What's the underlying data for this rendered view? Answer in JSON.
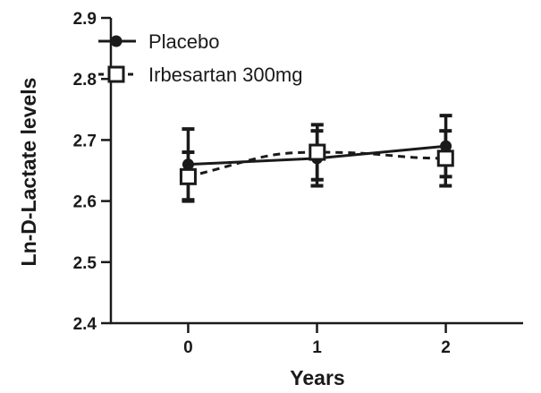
{
  "chart_data": {
    "type": "line",
    "title": "",
    "xlabel": "Years",
    "ylabel": "Ln-D-Lactate levels",
    "x": [
      0,
      1,
      2
    ],
    "x_tick_labels": [
      "0",
      "1",
      "2"
    ],
    "xlim": [
      -0.6,
      2.6
    ],
    "ylim": [
      2.4,
      2.9
    ],
    "y_ticks": [
      2.4,
      2.5,
      2.6,
      2.7,
      2.8,
      2.9
    ],
    "y_tick_labels": [
      "2.4",
      "2.5",
      "2.6",
      "2.7",
      "2.8",
      "2.9"
    ],
    "grid": false,
    "legend_position": "top-left",
    "series": [
      {
        "name": "Placebo",
        "values": [
          2.66,
          2.67,
          2.69
        ],
        "error": [
          0.058,
          0.045,
          0.05
        ],
        "marker": "filled-circle",
        "line_style": "solid",
        "color": "#1a1a1a"
      },
      {
        "name": "Irbesartan 300mg",
        "values": [
          2.64,
          2.68,
          2.67
        ],
        "error": [
          0.04,
          0.045,
          0.045
        ],
        "marker": "open-square",
        "line_style": "dashed",
        "color": "#1a1a1a"
      }
    ]
  }
}
